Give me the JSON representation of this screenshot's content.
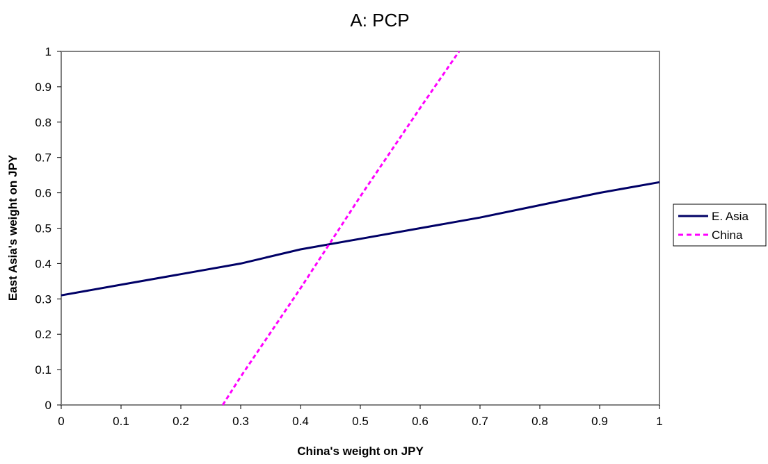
{
  "chart_data": {
    "type": "line",
    "title": "A: PCP",
    "xlabel": "China's weight on JPY",
    "ylabel": "East Asia's weight on JPY",
    "xlim": [
      0,
      1
    ],
    "ylim": [
      0,
      1
    ],
    "x_ticks": [
      "0",
      "0.1",
      "0.2",
      "0.3",
      "0.4",
      "0.5",
      "0.6",
      "0.7",
      "0.8",
      "0.9",
      "1"
    ],
    "y_ticks": [
      "0",
      "0.1",
      "0.2",
      "0.3",
      "0.4",
      "0.5",
      "0.6",
      "0.7",
      "0.8",
      "0.9",
      "1"
    ],
    "grid": false,
    "legend_position": "right",
    "series": [
      {
        "name": "E. Asia",
        "color": "#000066",
        "style": "solid",
        "points": [
          [
            0,
            0.31
          ],
          [
            0.1,
            0.34
          ],
          [
            0.2,
            0.37
          ],
          [
            0.3,
            0.4
          ],
          [
            0.4,
            0.44
          ],
          [
            0.5,
            0.47
          ],
          [
            0.6,
            0.5
          ],
          [
            0.7,
            0.53
          ],
          [
            0.8,
            0.565
          ],
          [
            0.9,
            0.6
          ],
          [
            1.0,
            0.63
          ]
        ]
      },
      {
        "name": "China",
        "color": "#ff00ff",
        "style": "dashed",
        "points": [
          [
            0.27,
            0.0
          ],
          [
            0.3,
            0.08
          ],
          [
            0.4,
            0.33
          ],
          [
            0.45,
            0.46
          ],
          [
            0.5,
            0.59
          ],
          [
            0.6,
            0.84
          ],
          [
            0.665,
            1.0
          ]
        ]
      }
    ]
  }
}
